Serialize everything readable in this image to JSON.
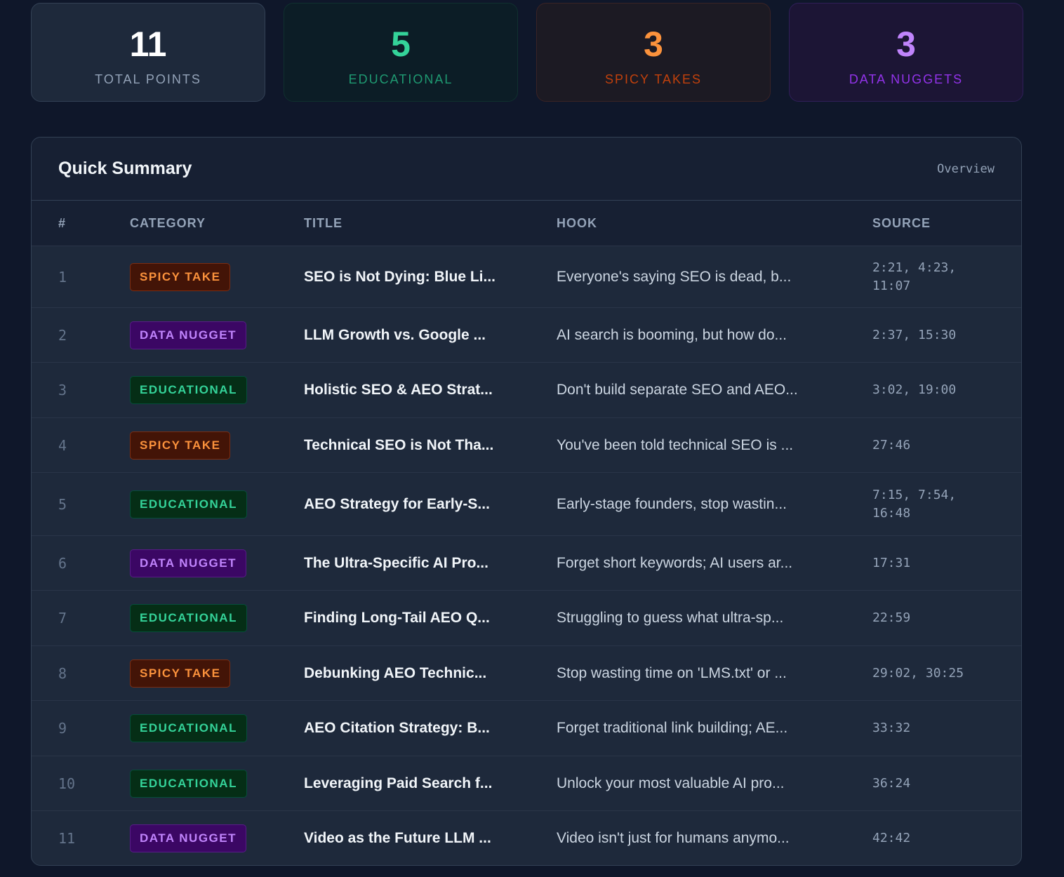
{
  "stats": [
    {
      "key": "total",
      "value": "11",
      "label": "TOTAL POINTS"
    },
    {
      "key": "edu",
      "value": "5",
      "label": "EDUCATIONAL"
    },
    {
      "key": "spicy",
      "value": "3",
      "label": "SPICY TAKES"
    },
    {
      "key": "data",
      "value": "3",
      "label": "DATA NUGGETS"
    }
  ],
  "summary": {
    "title": "Quick Summary",
    "tag": "Overview",
    "columns": [
      "#",
      "CATEGORY",
      "TITLE",
      "HOOK",
      "SOURCE"
    ],
    "rows": [
      {
        "num": "1",
        "category": "SPICY TAKE",
        "type": "spicy",
        "title": "SEO is Not Dying: Blue Li...",
        "hook": "Everyone's saying SEO is dead, b...",
        "source": "2:21, 4:23, 11:07"
      },
      {
        "num": "2",
        "category": "DATA NUGGET",
        "type": "data",
        "title": "LLM Growth vs. Google ...",
        "hook": "AI search is booming, but how do...",
        "source": "2:37, 15:30"
      },
      {
        "num": "3",
        "category": "EDUCATIONAL",
        "type": "edu",
        "title": "Holistic SEO & AEO Strat...",
        "hook": "Don't build separate SEO and AEO...",
        "source": "3:02, 19:00"
      },
      {
        "num": "4",
        "category": "SPICY TAKE",
        "type": "spicy",
        "title": "Technical SEO is Not Tha...",
        "hook": "You've been told technical SEO is ...",
        "source": "27:46"
      },
      {
        "num": "5",
        "category": "EDUCATIONAL",
        "type": "edu",
        "title": "AEO Strategy for Early-S...",
        "hook": "Early-stage founders, stop wastin...",
        "source": "7:15, 7:54, 16:48"
      },
      {
        "num": "6",
        "category": "DATA NUGGET",
        "type": "data",
        "title": "The Ultra-Specific AI Pro...",
        "hook": "Forget short keywords; AI users ar...",
        "source": "17:31"
      },
      {
        "num": "7",
        "category": "EDUCATIONAL",
        "type": "edu",
        "title": "Finding Long-Tail AEO Q...",
        "hook": "Struggling to guess what ultra-sp...",
        "source": "22:59"
      },
      {
        "num": "8",
        "category": "SPICY TAKE",
        "type": "spicy",
        "title": "Debunking AEO Technic...",
        "hook": "Stop wasting time on 'LMS.txt' or ...",
        "source": "29:02, 30:25"
      },
      {
        "num": "9",
        "category": "EDUCATIONAL",
        "type": "edu",
        "title": "AEO Citation Strategy: B...",
        "hook": "Forget traditional link building; AE...",
        "source": "33:32"
      },
      {
        "num": "10",
        "category": "EDUCATIONAL",
        "type": "edu",
        "title": "Leveraging Paid Search f...",
        "hook": "Unlock your most valuable AI pro...",
        "source": "36:24"
      },
      {
        "num": "11",
        "category": "DATA NUGGET",
        "type": "data",
        "title": "Video as the Future LLM ...",
        "hook": "Video isn't just for humans anymo...",
        "source": "42:42"
      }
    ]
  }
}
